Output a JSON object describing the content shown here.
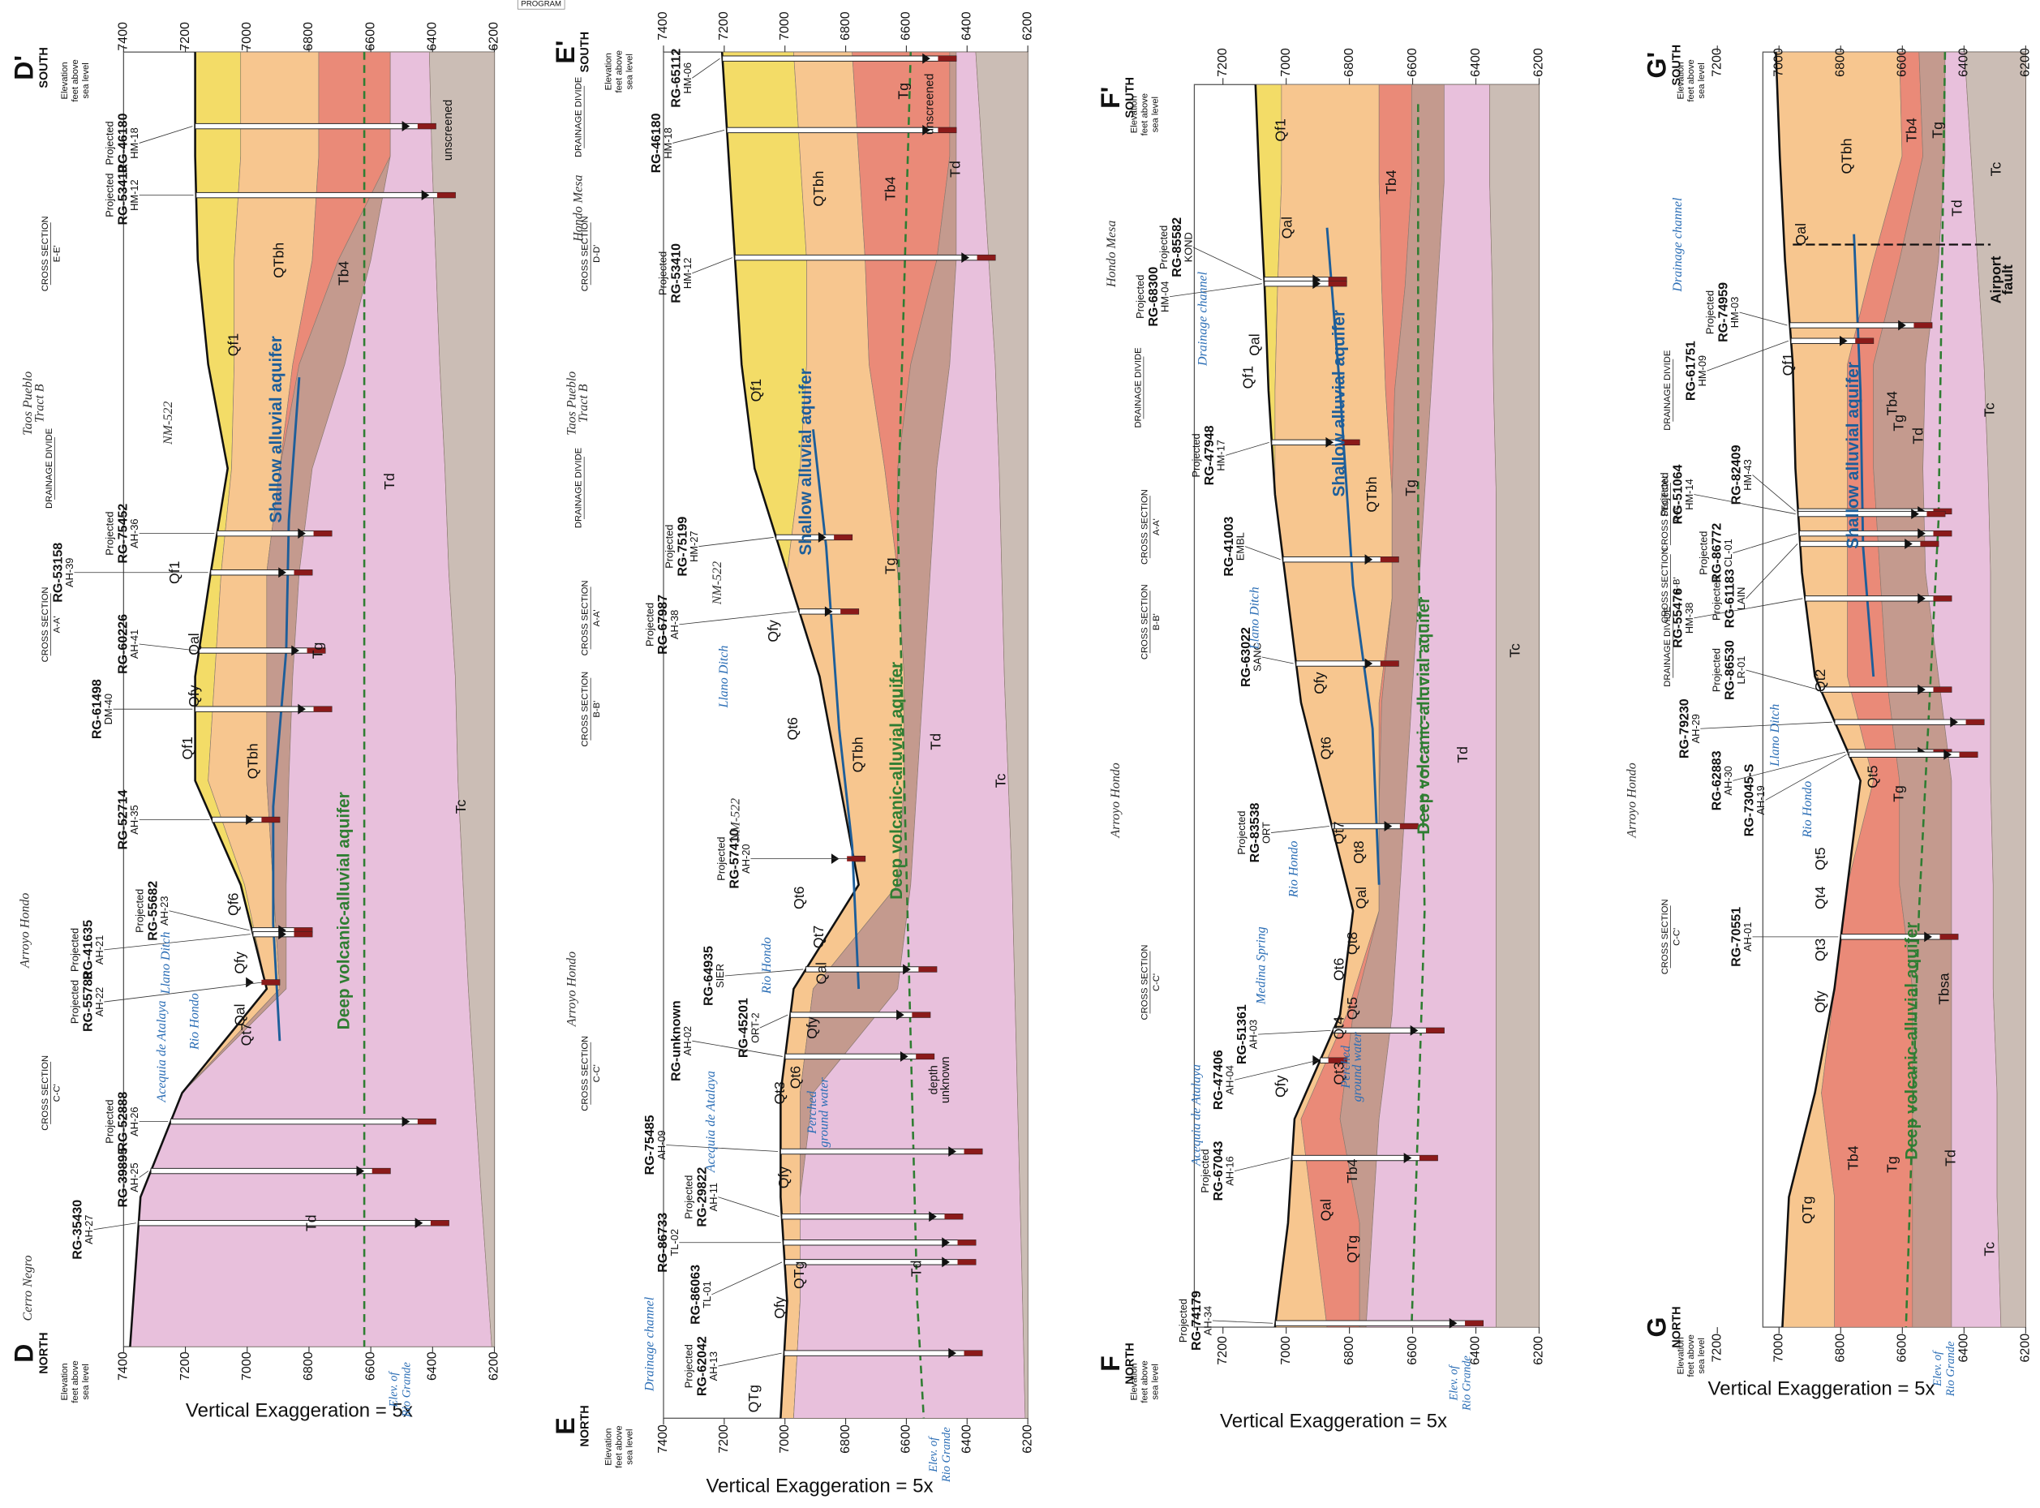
{
  "program_tag": "PROGRAM",
  "sections": [
    {
      "north_label": "D",
      "north_word": "NORTH",
      "south_label": "D'",
      "south_word": "SOUTH",
      "axis_title": [
        "Elevation",
        "feet above",
        "sea level"
      ],
      "ticks": [
        7400,
        7200,
        7000,
        6800,
        6600,
        6400,
        6200
      ],
      "exaggeration": "Vertical Exaggeration = 5x",
      "rio_grande": [
        "Elev. of",
        "Rio Grande"
      ],
      "wells": [
        {
          "note": "Projected",
          "name": "RG-46180",
          "code": "HM-18"
        },
        {
          "note": "Projected",
          "name": "RG-53410",
          "code": "HM-12"
        },
        {
          "note": "Projected",
          "name": "RG-75452",
          "code": "AH-36"
        },
        {
          "name": "RG-53158",
          "code": "AH-39"
        },
        {
          "name": "RG-60226",
          "code": "AH-41"
        },
        {
          "name": "RG-61498",
          "code": "DM-40"
        },
        {
          "name": "RG-52714",
          "code": "AH-35"
        },
        {
          "note": "Projected",
          "name": "RG-55682",
          "code": "AH-23"
        },
        {
          "note": "Projected",
          "name": "RG-41635",
          "code": "AH-21"
        },
        {
          "note": "Projected",
          "name": "RG-55788",
          "code": "AH-22"
        },
        {
          "note": "Projected",
          "name": "RG-52888",
          "code": "AH-26"
        },
        {
          "name": "RG-39895",
          "code": "AH-25"
        },
        {
          "name": "RG-35430",
          "code": "AH-27"
        }
      ],
      "units": [
        "Qf1",
        "QTbh",
        "Tb4",
        "Tg",
        "Td",
        "Tc",
        "Qf1",
        "Qal",
        "Qfy",
        "Qf1",
        "QTbh",
        "Qf6",
        "Qfy",
        "Qal",
        "Qt7",
        "Td"
      ],
      "annotations": [
        {
          "lines": [
            "CROSS SECTION",
            "E-E'"
          ]
        },
        {
          "lines": [
            "Taos Pueblo",
            "Tract B"
          ]
        },
        {
          "lines": [
            "NM-522"
          ]
        },
        {
          "lines": [
            "DRAINAGE DIVIDE"
          ]
        },
        {
          "lines": [
            "CROSS SECTION",
            "A-A'"
          ]
        },
        {
          "lines": [
            "Arroyo Hondo"
          ]
        },
        {
          "lines": [
            "Llano Ditch"
          ]
        },
        {
          "lines": [
            "Rio Hondo"
          ]
        },
        {
          "lines": [
            "Acequia de Atalaya"
          ]
        },
        {
          "lines": [
            "CROSS SECTION",
            "C-C'"
          ]
        },
        {
          "lines": [
            "Cerro Negro"
          ]
        },
        {
          "lines": [
            "Shallow alluvial aquifer"
          ]
        },
        {
          "lines": [
            "Deep volcanic-alluvial aquifer"
          ]
        },
        {
          "lines": [
            "unscreened"
          ]
        }
      ]
    },
    {
      "north_label": "E",
      "north_word": "NORTH",
      "south_label": "E'",
      "south_word": "SOUTH",
      "axis_title": [
        "Elevation",
        "feet above",
        "sea level"
      ],
      "ticks": [
        7400,
        7200,
        7000,
        6800,
        6600,
        6400,
        6200
      ],
      "exaggeration": "Vertical Exaggeration = 5x",
      "rio_grande": [
        "Elev. of",
        "Rio Grande"
      ],
      "wells": [
        {
          "name": "RG-65112",
          "code": "HM-06"
        },
        {
          "name": "RG-46180",
          "code": "HM-18"
        },
        {
          "note": "Projected",
          "name": "RG-53410",
          "code": "HM-12"
        },
        {
          "note": "Projected",
          "name": "RG-75199",
          "code": "HM-27"
        },
        {
          "note": "Projected",
          "name": "RG-67987",
          "code": "AH-38"
        },
        {
          "note": "Projected",
          "name": "RG-57410",
          "code": "AH-20"
        },
        {
          "name": "RG-64935",
          "code": "SIER"
        },
        {
          "name": "RG-45201",
          "code": "ORT-2"
        },
        {
          "name": "RG-unknown",
          "code": "AH-02"
        },
        {
          "name": "RG-75485",
          "code": "AH-09"
        },
        {
          "note": "Projected",
          "name": "RG-29822",
          "code": "AH-11"
        },
        {
          "name": "RG-86733",
          "code": "TL-02"
        },
        {
          "name": "RG-86063",
          "code": "TL-01"
        },
        {
          "note": "Projected",
          "name": "RG-62042",
          "code": "AH-13"
        }
      ],
      "units": [
        "Qf1",
        "QTbh",
        "Tb4",
        "Td",
        "Tg",
        "Tg",
        "Qfy",
        "Qt6",
        "QTbh",
        "Td",
        "Tc",
        "Qt6",
        "Qt7",
        "Qal",
        "Qfy",
        "Qt3",
        "Qt6",
        "Qfy",
        "Td",
        "QTg",
        "Qfy",
        "QTg"
      ],
      "annotations": [
        {
          "lines": [
            "DRAINAGE DIVIDE"
          ]
        },
        {
          "lines": [
            "Hondo Mesa"
          ]
        },
        {
          "lines": [
            "CROSS SECTION",
            "D-D'"
          ]
        },
        {
          "lines": [
            "Taos Pueblo",
            "Tract B"
          ]
        },
        {
          "lines": [
            "DRAINAGE DIVIDE"
          ]
        },
        {
          "lines": [
            "CROSS SECTION",
            "A-A'"
          ]
        },
        {
          "lines": [
            "NM-522"
          ]
        },
        {
          "lines": [
            "CROSS SECTION",
            "B-B'"
          ]
        },
        {
          "lines": [
            "Llano Ditch"
          ]
        },
        {
          "lines": [
            "NM-522"
          ]
        },
        {
          "lines": [
            "Arroyo Hondo"
          ]
        },
        {
          "lines": [
            "Rio Hondo"
          ]
        },
        {
          "lines": [
            "CROSS SECTION",
            "C-C'"
          ]
        },
        {
          "lines": [
            "Acequia de Atalaya"
          ]
        },
        {
          "lines": [
            "Drainage channel"
          ]
        },
        {
          "lines": [
            "Perched",
            "ground water"
          ]
        },
        {
          "lines": [
            "Shallow alluvial aquifer"
          ]
        },
        {
          "lines": [
            "Deep volcanic-alluvial aquifer"
          ]
        },
        {
          "lines": [
            "unscreened"
          ]
        },
        {
          "lines": [
            "depth",
            "unknown"
          ]
        }
      ]
    },
    {
      "north_label": "F",
      "north_word": "NORTH",
      "south_label": "F'",
      "south_word": "SOUTH",
      "axis_title": [
        "Elevation",
        "feet above",
        "sea level"
      ],
      "ticks": [
        7200,
        7000,
        6800,
        6600,
        6400,
        6200
      ],
      "exaggeration": "Vertical Exaggeration = 5x",
      "rio_grande": [
        "Elev. of",
        "Rio Grande"
      ],
      "wells": [
        {
          "note": "Projected",
          "name": "RG-85582",
          "code": "KOND"
        },
        {
          "note": "Projected",
          "name": "RG-68300",
          "code": "HM-04"
        },
        {
          "note": "Projected",
          "name": "RG-47948",
          "code": "HM-17"
        },
        {
          "name": "RG-41003",
          "code": "EMBL"
        },
        {
          "name": "RG-63022",
          "code": "SANC"
        },
        {
          "note": "Projected",
          "name": "RG-83538",
          "code": "ORT"
        },
        {
          "name": "RG-51361",
          "code": "AH-03"
        },
        {
          "name": "RG-47406",
          "code": "AH-04"
        },
        {
          "note": "Projected",
          "name": "RG-67043",
          "code": "AH-16"
        },
        {
          "note": "Projected",
          "name": "RG-74179",
          "code": "AH-34"
        }
      ],
      "units": [
        "Qf1",
        "Qal",
        "Tb4",
        "Qal",
        "Qf1",
        "QTbh",
        "Tg",
        "Td",
        "Tc",
        "Qfy",
        "Qt6",
        "Qt7",
        "Qt8",
        "Qal",
        "Qt8",
        "Qt6",
        "Qt5",
        "Qt4",
        "Qt3",
        "Qfy",
        "Qal",
        "QTg",
        "Tb4"
      ],
      "annotations": [
        {
          "lines": [
            "Hondo Mesa"
          ]
        },
        {
          "lines": [
            "Drainage channel"
          ]
        },
        {
          "lines": [
            "DRAINAGE DIVIDE"
          ]
        },
        {
          "lines": [
            "CROSS SECTION",
            "A-A'"
          ]
        },
        {
          "lines": [
            "Llano Ditch"
          ]
        },
        {
          "lines": [
            "CROSS SECTION",
            "B-B'"
          ]
        },
        {
          "lines": [
            "Arroyo Hondo"
          ]
        },
        {
          "lines": [
            "Rio Hondo"
          ]
        },
        {
          "lines": [
            "CROSS SECTION",
            "C-C'"
          ]
        },
        {
          "lines": [
            "Medina Spring"
          ]
        },
        {
          "lines": [
            "Acequia de Atalaya"
          ]
        },
        {
          "lines": [
            "Perched",
            "ground water"
          ]
        },
        {
          "lines": [
            "Shallow alluvial aquifer"
          ]
        },
        {
          "lines": [
            "Deep volcanic-alluvial aquifer"
          ]
        }
      ]
    },
    {
      "north_label": "G",
      "north_word": "NORTH",
      "south_label": "G'",
      "south_word": "SOUTH",
      "axis_title": [
        "Elevation",
        "feet above",
        "sea level"
      ],
      "ticks": [
        7200,
        7000,
        6800,
        6600,
        6400,
        6200
      ],
      "exaggeration": "Vertical Exaggeration = 5x",
      "rio_grande": [
        "Elev. of",
        "Rio Grande"
      ],
      "wells": [
        {
          "note": "Projected",
          "name": "RG-74959",
          "code": "HM-03"
        },
        {
          "name": "RG-61751",
          "code": "HM-09"
        },
        {
          "name": "RG-82409",
          "code": "HM-43"
        },
        {
          "note": "Projected",
          "name": "RG-51064",
          "code": "HM-14"
        },
        {
          "note": "Projected",
          "name": "RG-86772",
          "code": "CL-01"
        },
        {
          "note": "Projected",
          "name": "RG-61183",
          "code": "LAIN"
        },
        {
          "name": "RG-55476",
          "code": "HM-38"
        },
        {
          "note": "Projected",
          "name": "RG-86530",
          "code": "LR-01"
        },
        {
          "name": "RG-79230",
          "code": "AH-29"
        },
        {
          "name": "RG-62883",
          "code": "AH-30"
        },
        {
          "name": "RG-73045-S",
          "code": "AH-19"
        },
        {
          "name": "RG-70551",
          "code": "AH-01"
        }
      ],
      "units": [
        "Qal",
        "QTbh",
        "Tb4",
        "Tg",
        "Td",
        "Tc",
        "Qf1",
        "Tb4",
        "Tg",
        "Td",
        "Tc",
        "Qt2",
        "Qt5",
        "Tg",
        "Qt5",
        "Qt4",
        "Qt3",
        "Qfy",
        "Tbsa",
        "Tg",
        "Tb4",
        "Td",
        "QTg",
        "Tc"
      ],
      "annotations": [
        {
          "lines": [
            "Drainage channel"
          ]
        },
        {
          "lines": [
            "DRAINAGE DIVIDE"
          ]
        },
        {
          "lines": [
            "CROSS SECTION",
            "A-A'"
          ]
        },
        {
          "lines": [
            "CROSS SECTION",
            "B-B'"
          ]
        },
        {
          "lines": [
            "DRAINAGE DIVIDE"
          ]
        },
        {
          "lines": [
            "Llano Ditch"
          ]
        },
        {
          "lines": [
            "Rio Hondo"
          ]
        },
        {
          "lines": [
            "Arroyo Hondo"
          ]
        },
        {
          "lines": [
            "CROSS SECTION",
            "C-C'"
          ]
        },
        {
          "lines": [
            "Airport",
            "fault"
          ]
        },
        {
          "lines": [
            "Shallow alluvial aquifer"
          ]
        },
        {
          "lines": [
            "Deep volcanic-alluvial aquifer"
          ]
        }
      ]
    }
  ]
}
